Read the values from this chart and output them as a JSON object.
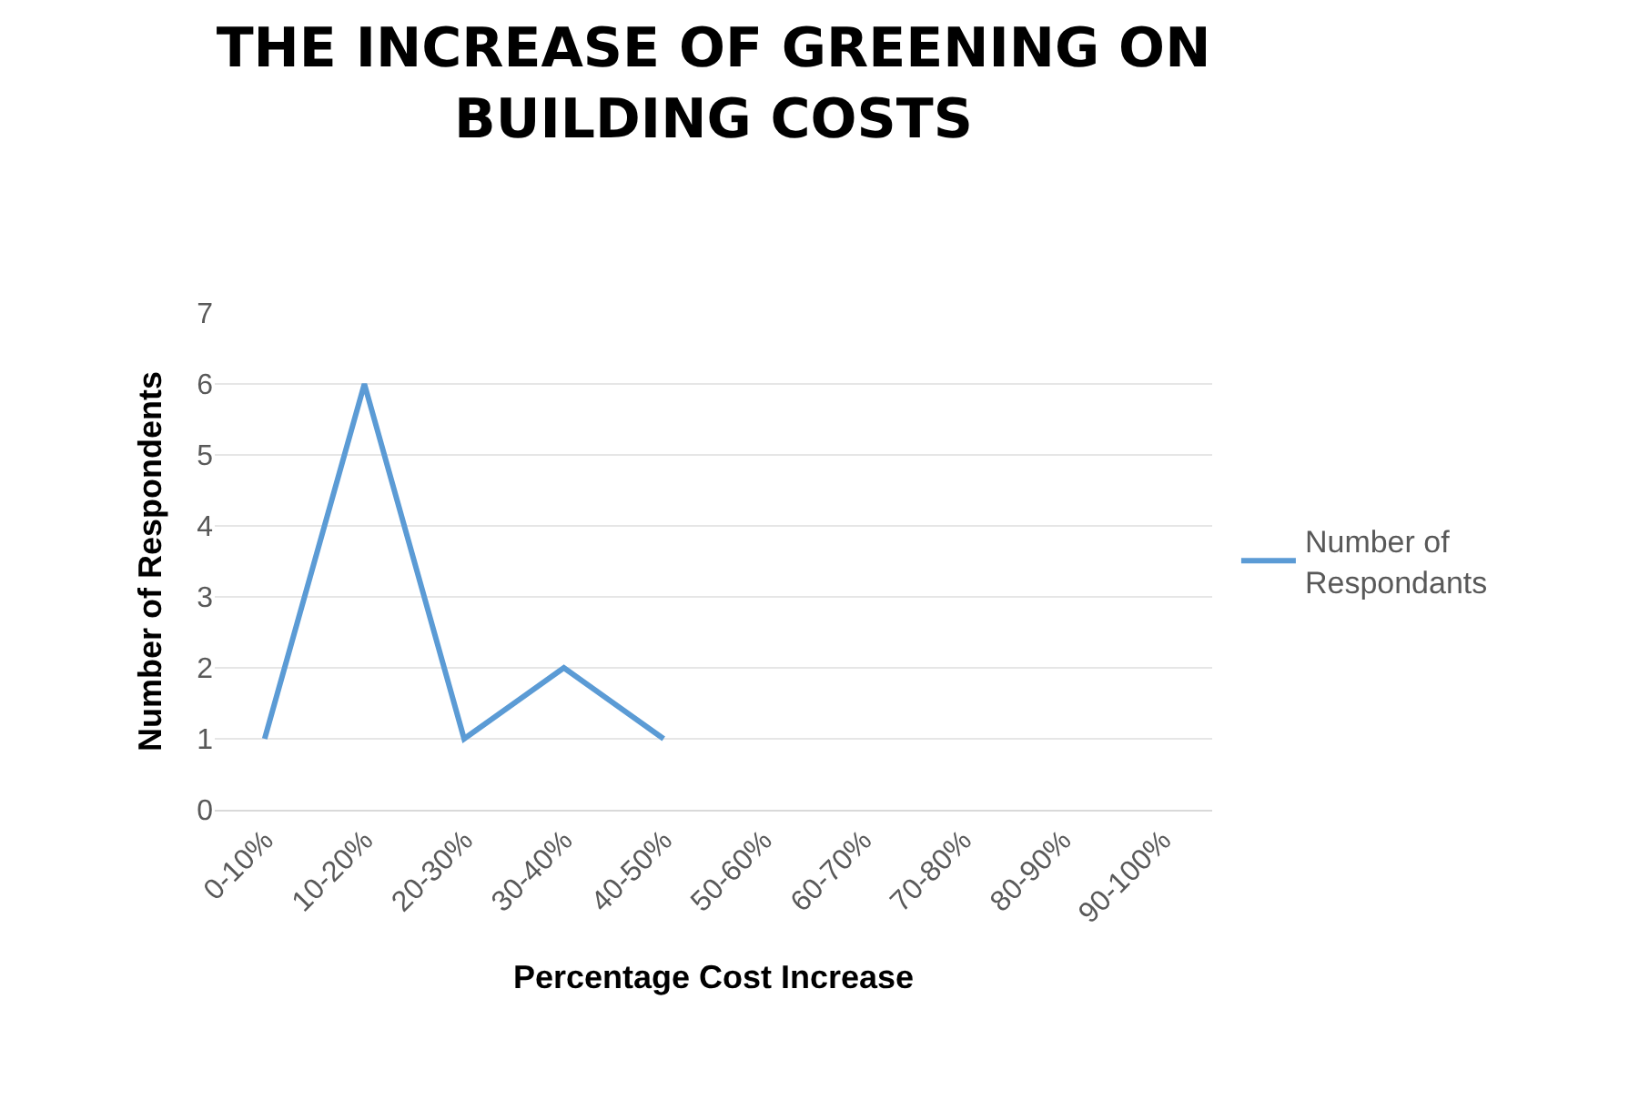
{
  "chart_data": {
    "type": "line",
    "title": "THE INCREASE OF GREENING ON BUILDING COSTS",
    "xlabel": "Percentage Cost Increase",
    "ylabel": "Number of Respondents",
    "categories": [
      "0-10%",
      "10-20%",
      "20-30%",
      "30-40%",
      "40-50%",
      "50-60%",
      "60-70%",
      "70-80%",
      "80-90%",
      "90-100%"
    ],
    "series": [
      {
        "name": "Number of Respondants",
        "color": "#5b9bd5",
        "values": [
          1,
          6,
          1,
          2,
          1,
          null,
          null,
          null,
          null,
          null
        ]
      }
    ],
    "ylim": [
      0,
      7
    ],
    "yticks": [
      0,
      1,
      2,
      3,
      4,
      5,
      6,
      7
    ],
    "grid": "y",
    "legend": "right",
    "marker": "none",
    "line_style": "solid"
  }
}
